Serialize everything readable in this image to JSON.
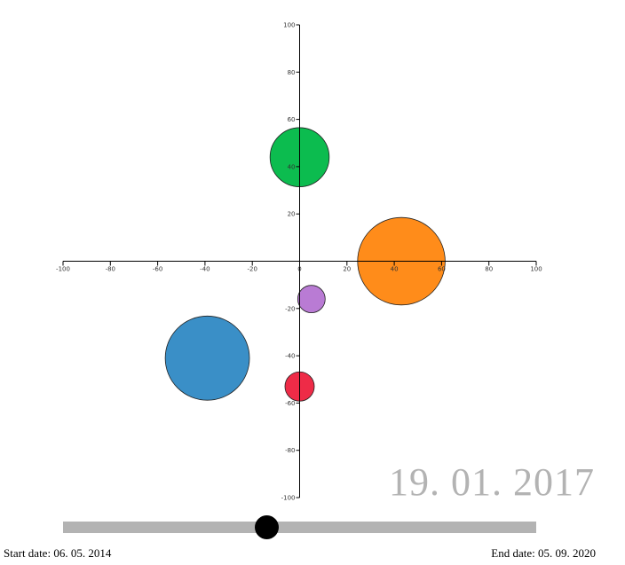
{
  "chart_data": {
    "type": "scatter",
    "title": "",
    "xlabel": "",
    "ylabel": "",
    "xlim": [
      -100,
      100
    ],
    "ylim": [
      -100,
      100
    ],
    "x_ticks": [
      -100,
      -80,
      -60,
      -40,
      -20,
      0,
      20,
      40,
      60,
      80,
      100
    ],
    "y_ticks": [
      100,
      80,
      60,
      40,
      20,
      0,
      -20,
      -40,
      -60,
      -80,
      -100
    ],
    "grid": false,
    "bubbles": [
      {
        "x": 0,
        "y": 44,
        "r": 12.5,
        "color": "#0cbc4f"
      },
      {
        "x": 43,
        "y": 0,
        "r": 18.5,
        "color": "#ff8c1a"
      },
      {
        "x": 5,
        "y": -16,
        "r": 5.8,
        "color": "#b97bd4"
      },
      {
        "x": -39,
        "y": -41,
        "r": 17.8,
        "color": "#3a8fc7"
      },
      {
        "x": 0,
        "y": -53,
        "r": 6.2,
        "color": "#ee2b47"
      }
    ]
  },
  "current_date": "19. 01. 2017",
  "timeline": {
    "start_label": "Start date: 06. 05. 2014",
    "end_label": "End date: 05. 09. 2020",
    "position": 0.43
  }
}
